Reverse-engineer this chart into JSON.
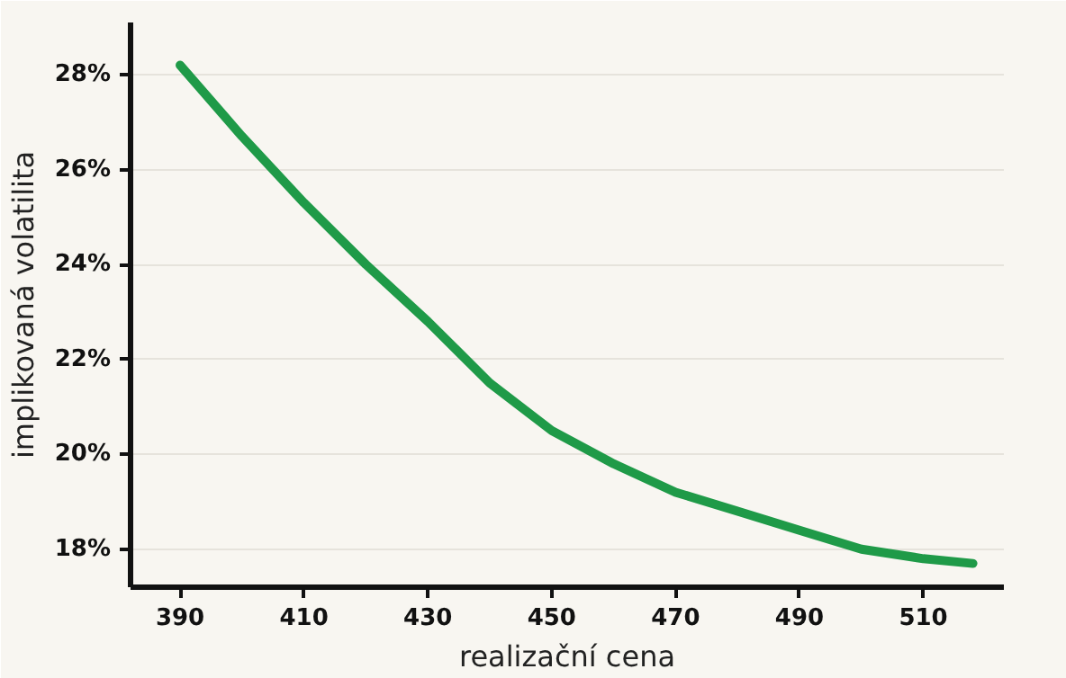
{
  "chart_data": {
    "type": "line",
    "xlabel": "realizační cena",
    "ylabel": "implikovaná volatilita",
    "x": [
      390,
      400,
      410,
      420,
      430,
      440,
      450,
      460,
      470,
      480,
      490,
      500,
      510,
      518
    ],
    "series": [
      {
        "color": "#1f9a48",
        "values": [
          28.2,
          26.7,
          25.3,
          24.0,
          22.8,
          21.5,
          20.5,
          19.8,
          19.2,
          18.8,
          18.4,
          18.0,
          17.8,
          17.7
        ]
      }
    ],
    "xlim": [
      382,
      523
    ],
    "ylim": [
      17.2,
      29.1
    ],
    "xticks": [
      390,
      410,
      430,
      450,
      470,
      490,
      510
    ],
    "yticks": [
      {
        "value": 18,
        "label": "18%"
      },
      {
        "value": 20,
        "label": "20%"
      },
      {
        "value": 22,
        "label": "22%"
      },
      {
        "value": 24,
        "label": "24%"
      },
      {
        "value": 26,
        "label": "26%"
      },
      {
        "value": 28,
        "label": "28%"
      }
    ],
    "grid": "y",
    "marker": "none",
    "line_style": "solid"
  }
}
